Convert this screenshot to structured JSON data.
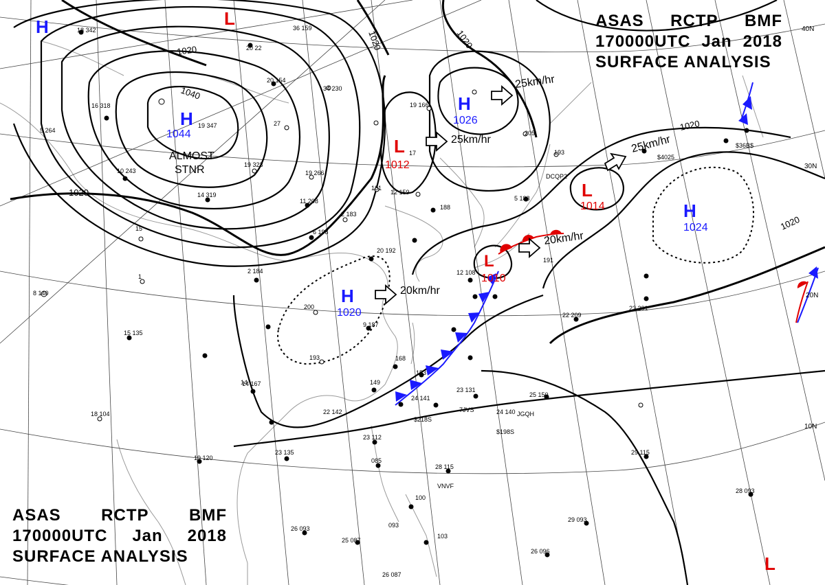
{
  "title": {
    "agency": "ASAS",
    "station": "RCTP",
    "office": "BMF",
    "time": "170000UTC",
    "month": "Jan",
    "year": "2018",
    "type": "SURFACE ANALYSIS"
  },
  "colors": {
    "high": "#1a1aff",
    "low": "#e00000",
    "cold_front": "#1a1aff",
    "warm_front": "#e00000",
    "isobar": "#000000"
  },
  "latitude_labels": [
    "40N",
    "30N",
    "20N",
    "10N"
  ],
  "isobar_labels": [
    "1020",
    "1020",
    "1020",
    "1040",
    "1020",
    "1020",
    "1020"
  ],
  "pressure_centers": [
    {
      "kind": "H",
      "value": ""
    },
    {
      "kind": "L",
      "value": ""
    },
    {
      "kind": "H",
      "value": "1044"
    },
    {
      "kind": "L",
      "value": "1012"
    },
    {
      "kind": "H",
      "value": "1026"
    },
    {
      "kind": "L",
      "value": "1014"
    },
    {
      "kind": "H",
      "value": "1024"
    },
    {
      "kind": "H",
      "value": "1020"
    },
    {
      "kind": "L",
      "value": "1010"
    },
    {
      "kind": "L",
      "value": ""
    }
  ],
  "center_note": [
    "ALMOST",
    "STNR"
  ],
  "motion_labels": [
    "25km/hr",
    "25km/hr",
    "25km/hr",
    "20km/hr",
    "20km/hr"
  ],
  "station_numbers": [
    "18 342",
    "36 159",
    "20 22",
    "20 154",
    "34 230",
    "16 318",
    "5 264",
    "19 347",
    "27",
    "19 323",
    "10 243",
    "14 319",
    "19 266",
    "11 208",
    "2 183",
    "19 166",
    "17",
    "12 159",
    "181",
    "205",
    "193",
    "188",
    "15",
    "6 198",
    "2 184",
    "1",
    "8 140",
    "200",
    "9 187",
    "193",
    "20 192",
    "15 135",
    "14 167",
    "18 104",
    "19 120",
    "23 135",
    "23 112",
    "22 142",
    "24 141",
    "23 131",
    "24 140",
    "22 209",
    "23 201",
    "25 150",
    "29 115",
    "28 115",
    "26 093",
    "25 087",
    "26 087",
    "29 093",
    "26 096",
    "28 093",
    "12 108",
    "5 188",
    "191",
    "168",
    "153",
    "149",
    "14",
    "085",
    "103",
    "100",
    "093"
  ],
  "weather_codes": [
    "DCQP2",
    "$4025",
    "$36B$",
    "7JVS",
    "$218S",
    "JGQH",
    "$198S",
    "VNVF"
  ]
}
